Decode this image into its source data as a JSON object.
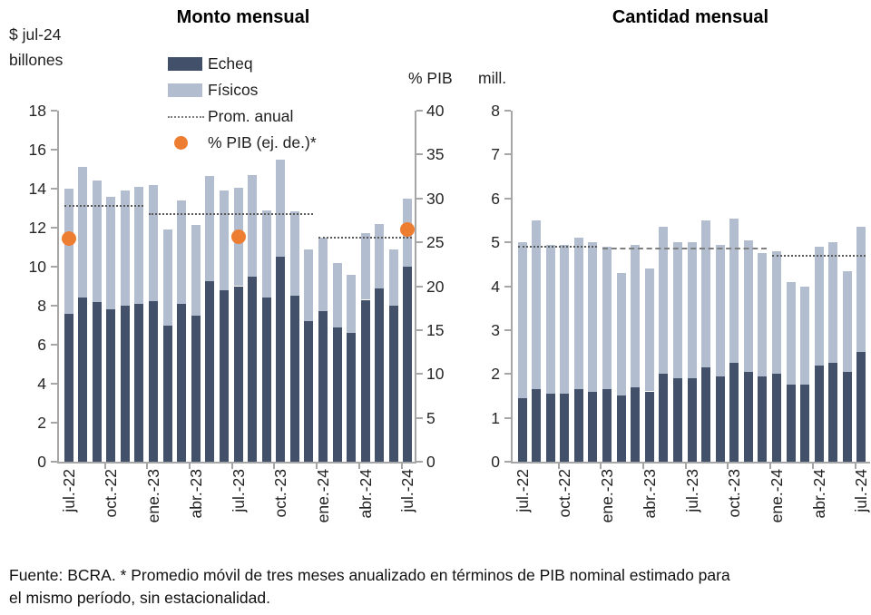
{
  "colors": {
    "echeq": "#42506A",
    "fisicos": "#B2BDD0",
    "pib_dot": "#ED7D31",
    "axis": "#A6A6A6",
    "avg_line_dotted": "#595959",
    "avg_line_dashed": "#7F7F7F"
  },
  "legend": {
    "items": [
      {
        "label": "Echeq",
        "swatch": "rect",
        "color_key": "echeq"
      },
      {
        "label": "Físicos",
        "swatch": "rect",
        "color_key": "fisicos"
      },
      {
        "label": "Prom. anual",
        "swatch": "dotted-line"
      },
      {
        "label": "% PIB (ej. de.)*",
        "swatch": "dot",
        "color_key": "pib_dot"
      }
    ]
  },
  "footer": {
    "line1": "Fuente: BCRA. * Promedio móvil de tres meses anualizado en términos de PIB nominal estimado para",
    "line2": "el mismo período, sin estacionalidad."
  },
  "chart_data": [
    {
      "type": "bar",
      "stacked": true,
      "title": "Monto mensual",
      "ylabel_lines": [
        "$ jul-24",
        "billones"
      ],
      "y2label": "% PIB",
      "ylim": [
        0,
        18
      ],
      "yticks": [
        0,
        2,
        4,
        6,
        8,
        10,
        12,
        14,
        16,
        18
      ],
      "y2lim": [
        0,
        40
      ],
      "y2ticks": [
        0,
        5,
        10,
        15,
        20,
        25,
        30,
        35,
        40
      ],
      "grid": false,
      "categories": [
        "jul.-22",
        "ago.-22",
        "sep.-22",
        "oct.-22",
        "nov.-22",
        "dic.-22",
        "ene.-23",
        "feb.-23",
        "mar.-23",
        "abr.-23",
        "may.-23",
        "jun.-23",
        "jul.-23",
        "ago.-23",
        "sep.-23",
        "oct.-23",
        "nov.-23",
        "dic.-23",
        "ene.-24",
        "feb.-24",
        "mar.-24",
        "abr.-24",
        "may.-24",
        "jun.-24",
        "jul.-24"
      ],
      "x_ticks": [
        {
          "month": 0,
          "label": "jul.-22"
        },
        {
          "month": 3,
          "label": "oct.-22"
        },
        {
          "month": 6,
          "label": "ene.-23"
        },
        {
          "month": 9,
          "label": "abr.-23"
        },
        {
          "month": 12,
          "label": "jul.-23"
        },
        {
          "month": 15,
          "label": "oct.-23"
        },
        {
          "month": 18,
          "label": "ene.-24"
        },
        {
          "month": 21,
          "label": "abr.-24"
        },
        {
          "month": 24,
          "label": "jul.-24"
        }
      ],
      "series": [
        {
          "name": "Echeq",
          "color_key": "echeq",
          "values": [
            7.6,
            8.4,
            8.2,
            7.8,
            8.0,
            8.1,
            8.25,
            7.0,
            8.1,
            7.5,
            9.25,
            8.8,
            9.0,
            9.5,
            8.4,
            10.5,
            8.5,
            7.2,
            7.7,
            6.9,
            6.6,
            8.3,
            8.9,
            8.0,
            10.0
          ]
        },
        {
          "name": "Físicos",
          "color_key": "fisicos",
          "values": [
            6.4,
            6.7,
            6.2,
            5.8,
            5.9,
            6.0,
            5.95,
            4.9,
            5.3,
            4.65,
            5.4,
            5.1,
            5.05,
            5.2,
            4.5,
            5.0,
            4.35,
            3.7,
            3.8,
            3.3,
            3.0,
            3.4,
            3.3,
            2.9,
            3.5
          ]
        }
      ],
      "annual_avg_lines": [
        {
          "year": "2022",
          "from_month": 0,
          "to_month": 5,
          "value": 13.1,
          "style": "dotted"
        },
        {
          "year": "2023",
          "from_month": 6,
          "to_month": 17,
          "value": 12.7,
          "style": "dotted"
        },
        {
          "year": "2024",
          "from_month": 18,
          "to_month": 24,
          "value": 11.5,
          "style": "dotted"
        }
      ],
      "pib_dots": [
        {
          "month": 0,
          "month_label": "jul.-22",
          "pib_pct": 25.4
        },
        {
          "month": 12,
          "month_label": "jul.-23",
          "pib_pct": 25.6
        },
        {
          "month": 24,
          "month_label": "jul.-24",
          "pib_pct": 26.5
        }
      ]
    },
    {
      "type": "bar",
      "stacked": true,
      "title": "Cantidad mensual",
      "ylabel": "mill.",
      "ylim": [
        0,
        8
      ],
      "yticks": [
        0,
        1,
        2,
        3,
        4,
        5,
        6,
        7,
        8
      ],
      "grid": false,
      "categories": [
        "jul.-22",
        "ago.-22",
        "sep.-22",
        "oct.-22",
        "nov.-22",
        "dic.-22",
        "ene.-23",
        "feb.-23",
        "mar.-23",
        "abr.-23",
        "may.-23",
        "jun.-23",
        "jul.-23",
        "ago.-23",
        "sep.-23",
        "oct.-23",
        "nov.-23",
        "dic.-23",
        "ene.-24",
        "feb.-24",
        "mar.-24",
        "abr.-24",
        "may.-24",
        "jun.-24",
        "jul.-24"
      ],
      "x_ticks": [
        {
          "month": 0,
          "label": "jul.-22"
        },
        {
          "month": 3,
          "label": "oct.-22"
        },
        {
          "month": 6,
          "label": "ene.-23"
        },
        {
          "month": 9,
          "label": "abr.-23"
        },
        {
          "month": 12,
          "label": "jul.-23"
        },
        {
          "month": 15,
          "label": "oct.-23"
        },
        {
          "month": 18,
          "label": "ene.-24"
        },
        {
          "month": 21,
          "label": "abr.-24"
        },
        {
          "month": 24,
          "label": "jul.-24"
        }
      ],
      "series": [
        {
          "name": "Echeq",
          "color_key": "echeq",
          "values": [
            1.45,
            1.65,
            1.55,
            1.55,
            1.65,
            1.6,
            1.65,
            1.5,
            1.7,
            1.6,
            2.0,
            1.9,
            1.9,
            2.15,
            1.95,
            2.25,
            2.05,
            1.95,
            2.0,
            1.75,
            1.75,
            2.2,
            2.25,
            2.05,
            2.5
          ]
        },
        {
          "name": "Físicos",
          "color_key": "fisicos",
          "values": [
            3.55,
            3.85,
            3.4,
            3.4,
            3.45,
            3.4,
            3.25,
            2.8,
            3.25,
            2.8,
            3.35,
            3.1,
            3.1,
            3.35,
            3.0,
            3.3,
            3.0,
            2.8,
            2.8,
            2.35,
            2.25,
            2.7,
            2.75,
            2.3,
            2.85
          ]
        }
      ],
      "annual_avg_lines": [
        {
          "year": "2022",
          "from_month": 0,
          "to_month": 5,
          "value": 4.9,
          "style": "dotted"
        },
        {
          "year": "2023",
          "from_month": 6,
          "to_month": 17,
          "value": 4.85,
          "style": "dashed"
        },
        {
          "year": "2024",
          "from_month": 18,
          "to_month": 24,
          "value": 4.7,
          "style": "dotted"
        }
      ]
    }
  ]
}
